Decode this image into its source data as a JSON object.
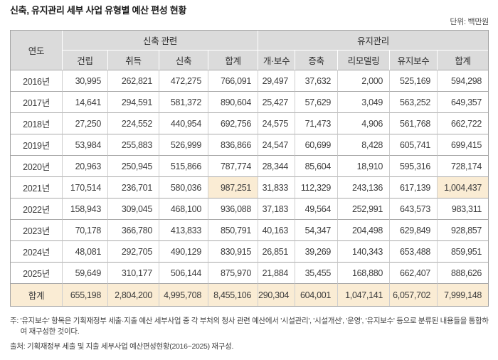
{
  "title": "신축, 유지관리 세부 사업 유형별 예산 편성 현황",
  "unit_label": "단위: 백만원",
  "colors": {
    "header_bg": "#dbdbdb",
    "highlight_bg": "#faecd4",
    "row_line": "#a9a9a9",
    "col_line": "#cfcfcf",
    "header_line": "#ffffff",
    "outer_line": "#a3a3a3"
  },
  "table": {
    "year_header": "연도",
    "groups": [
      {
        "label": "신축 관련",
        "columns": [
          "건립",
          "취득",
          "신축",
          "합계"
        ]
      },
      {
        "label": "유지관리",
        "columns": [
          "개·보수",
          "증축",
          "리모델링",
          "유지보수",
          "합계"
        ]
      }
    ],
    "rows": [
      {
        "year": "2016년",
        "values": [
          "30,995",
          "262,821",
          "472,275",
          "766,091",
          "29,497",
          "37,632",
          "2,000",
          "525,169",
          "594,298"
        ],
        "highlight": []
      },
      {
        "year": "2017년",
        "values": [
          "14,641",
          "294,591",
          "581,372",
          "890,604",
          "25,427",
          "57,629",
          "3,049",
          "563,252",
          "649,357"
        ],
        "highlight": []
      },
      {
        "year": "2018년",
        "values": [
          "27,250",
          "224,552",
          "440,954",
          "692,756",
          "24,575",
          "71,473",
          "4,906",
          "561,768",
          "662,722"
        ],
        "highlight": []
      },
      {
        "year": "2019년",
        "values": [
          "53,984",
          "255,883",
          "526,999",
          "836,866",
          "24,547",
          "60,699",
          "8,428",
          "605,741",
          "699,415"
        ],
        "highlight": []
      },
      {
        "year": "2020년",
        "values": [
          "20,963",
          "250,945",
          "515,866",
          "787,774",
          "28,344",
          "85,604",
          "18,910",
          "595,316",
          "728,174"
        ],
        "highlight": []
      },
      {
        "year": "2021년",
        "values": [
          "170,514",
          "236,701",
          "580,036",
          "987,251",
          "31,833",
          "112,329",
          "243,136",
          "617,139",
          "1,004,437"
        ],
        "highlight": [
          3,
          8
        ]
      },
      {
        "year": "2022년",
        "values": [
          "158,943",
          "309,045",
          "468,100",
          "936,088",
          "37,183",
          "49,564",
          "252,991",
          "643,573",
          "983,311"
        ],
        "highlight": []
      },
      {
        "year": "2023년",
        "values": [
          "70,178",
          "366,780",
          "413,833",
          "850,791",
          "40,163",
          "54,347",
          "204,498",
          "629,849",
          "928,857"
        ],
        "highlight": []
      },
      {
        "year": "2024년",
        "values": [
          "48,081",
          "292,705",
          "490,129",
          "830,915",
          "26,851",
          "39,269",
          "140,343",
          "653,488",
          "859,951"
        ],
        "highlight": []
      },
      {
        "year": "2025년",
        "values": [
          "59,649",
          "310,177",
          "506,144",
          "875,970",
          "21,884",
          "35,455",
          "168,880",
          "662,407",
          "888,626"
        ],
        "highlight": []
      }
    ],
    "total_row": {
      "label": "합계",
      "values": [
        "655,198",
        "2,804,200",
        "4,995,708",
        "8,455,106",
        "290,304",
        "604,001",
        "1,047,141",
        "6,057,702",
        "7,999,148"
      ]
    }
  },
  "notes": [
    {
      "prefix": "주: ",
      "text": "'유지보수' 항목은 기획재정부 세출·지출 예산 세부사업 중 각 부처의 청사 관련 예산에서 '시설관리', '시설개선', '운영', '유지보수' 등으로 분류된 내용들을 통합하여 재구성한 것이다."
    },
    {
      "prefix": "출처: ",
      "text": "기획재정부 세출 및 지출 세부사업 예산편성현황(2016~2025) 재구성."
    }
  ]
}
